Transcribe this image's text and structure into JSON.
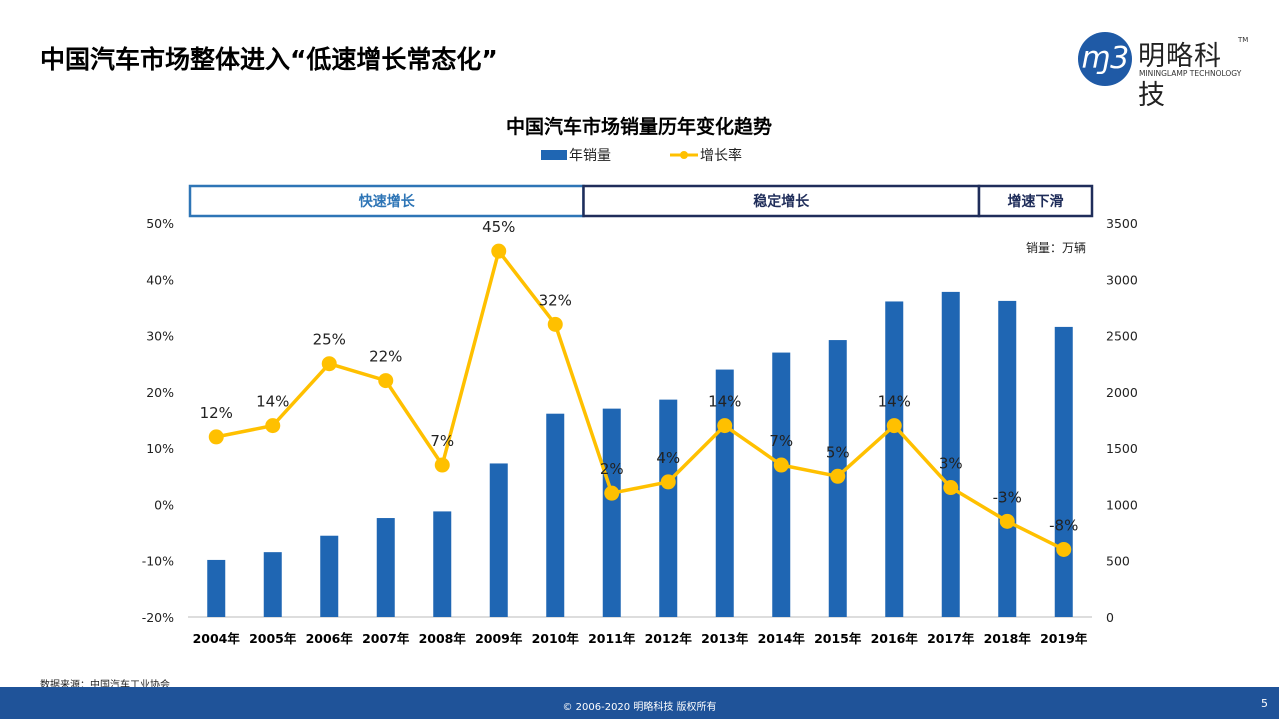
{
  "page_title": "中国汽车市场整体进入“低速增长常态化”",
  "logo": {
    "cn": "明略科技",
    "en": "MININGLAMP TECHNOLOGY",
    "tm": "TM",
    "mark": "m3"
  },
  "source": "数据来源：中国汽车工业协会",
  "footer": {
    "copyright": "© 2006-2020 明略科技 版权所有",
    "page_number": "5"
  },
  "colors": {
    "bar": "#1f66b3",
    "line": "#ffc000",
    "phase_fast": "#2e75b6",
    "phase_other": "#1f2d5a",
    "footer": "#1f5399"
  },
  "chart_data": {
    "type": "bar+line",
    "title": "中国汽车市场销量历年变化趋势",
    "unit_label": "销量：万辆",
    "categories": [
      "2004年",
      "2005年",
      "2006年",
      "2007年",
      "2008年",
      "2009年",
      "2010年",
      "2011年",
      "2012年",
      "2013年",
      "2014年",
      "2015年",
      "2016年",
      "2017年",
      "2018年",
      "2019年"
    ],
    "series": [
      {
        "name": "年销量",
        "type": "bar",
        "axis": "right",
        "values": [
          507,
          576,
          722,
          879,
          938,
          1364,
          1806,
          1851,
          1931,
          2198,
          2349,
          2460,
          2803,
          2888,
          2808,
          2577
        ]
      },
      {
        "name": "增长率",
        "type": "line",
        "axis": "left",
        "values": [
          12,
          14,
          25,
          22,
          7,
          45,
          32,
          2,
          4,
          14,
          7,
          5,
          14,
          3,
          -3,
          -8
        ],
        "labels": [
          "12%",
          "14%",
          "25%",
          "22%",
          "7%",
          "45%",
          "32%",
          "2%",
          "4%",
          "14%",
          "7%",
          "5%",
          "14%",
          "3%",
          "-3%",
          "-8%"
        ]
      }
    ],
    "left_axis": {
      "range": [
        -20,
        50
      ],
      "ticks": [
        "-20%",
        "-10%",
        "0%",
        "10%",
        "20%",
        "30%",
        "40%",
        "50%"
      ]
    },
    "right_axis": {
      "range": [
        0,
        3500
      ],
      "ticks": [
        "0",
        "500",
        "1000",
        "1500",
        "2000",
        "2500",
        "3000",
        "3500"
      ]
    },
    "legend_placement": "top",
    "grid": false,
    "phases": [
      {
        "label": "快速增长",
        "from": "2004年",
        "to": "2010年"
      },
      {
        "label": "稳定增长",
        "from": "2011年",
        "to": "2017年"
      },
      {
        "label": "增速下滑",
        "from": "2018年",
        "to": "2019年"
      }
    ]
  }
}
